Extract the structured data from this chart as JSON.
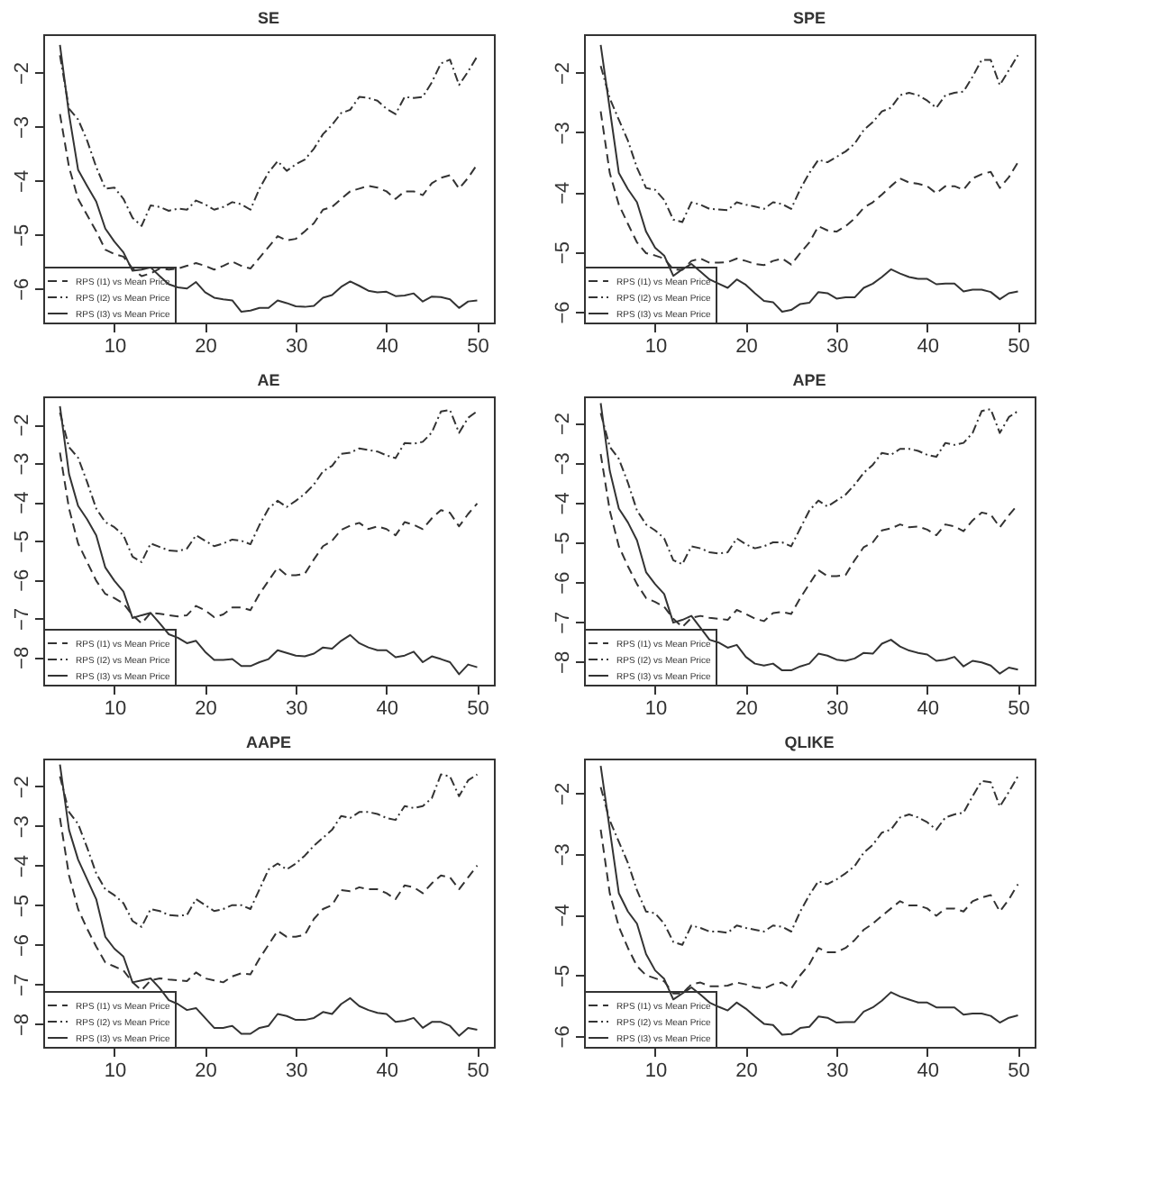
{
  "chart_data": [
    {
      "type": "line",
      "title": "SE",
      "x": [
        4,
        5,
        6,
        7,
        8,
        9,
        10,
        11,
        12,
        13,
        14,
        15,
        16,
        17,
        18,
        19,
        20,
        21,
        22,
        23,
        24,
        25,
        26,
        27,
        28,
        29,
        30,
        31,
        32,
        33,
        34,
        35,
        36,
        37,
        38,
        39,
        40,
        41,
        42,
        43,
        44,
        45,
        46,
        47,
        48,
        49,
        50
      ],
      "xlim": [
        2.16,
        51.84
      ],
      "ylim": [
        -6.63,
        -1.29
      ],
      "xticks": [
        10,
        20,
        30,
        40,
        50
      ],
      "yticks": [
        -6,
        -5,
        -4,
        -3,
        -2
      ],
      "legend": "bottom left",
      "series": [
        {
          "name": "RPS (I1) vs Mean Price",
          "color": "#333333",
          "line_style": "dashed",
          "values": [
            -2.77,
            -3.75,
            -4.34,
            -4.64,
            -4.94,
            -5.28,
            -5.36,
            -5.41,
            -5.63,
            -5.77,
            -5.72,
            -5.63,
            -5.65,
            -5.63,
            -5.58,
            -5.53,
            -5.58,
            -5.65,
            -5.58,
            -5.5,
            -5.58,
            -5.63,
            -5.43,
            -5.23,
            -5.03,
            -5.11,
            -5.08,
            -4.94,
            -4.79,
            -4.54,
            -4.49,
            -4.34,
            -4.2,
            -4.15,
            -4.1,
            -4.13,
            -4.2,
            -4.34,
            -4.2,
            -4.2,
            -4.27,
            -4.05,
            -3.95,
            -3.9,
            -4.15,
            -3.95,
            -3.7
          ]
        },
        {
          "name": "RPS (I2) vs Mean Price",
          "color": "#333333",
          "line_style": "dashdot",
          "values": [
            -1.68,
            -2.67,
            -2.87,
            -3.26,
            -3.75,
            -4.15,
            -4.13,
            -4.34,
            -4.69,
            -4.84,
            -4.46,
            -4.49,
            -4.56,
            -4.52,
            -4.54,
            -4.37,
            -4.44,
            -4.54,
            -4.49,
            -4.4,
            -4.44,
            -4.54,
            -4.15,
            -3.85,
            -3.64,
            -3.82,
            -3.7,
            -3.61,
            -3.41,
            -3.14,
            -2.97,
            -2.75,
            -2.69,
            -2.45,
            -2.47,
            -2.52,
            -2.67,
            -2.77,
            -2.45,
            -2.47,
            -2.45,
            -2.18,
            -1.83,
            -1.76,
            -2.23,
            -1.98,
            -1.7
          ]
        },
        {
          "name": "RPS (I3) vs Mean Price",
          "color": "#333333",
          "line_style": "solid",
          "values": [
            -1.49,
            -2.77,
            -3.8,
            -4.1,
            -4.39,
            -4.89,
            -5.13,
            -5.33,
            -5.67,
            -5.65,
            -5.61,
            -5.77,
            -5.92,
            -5.98,
            -6.0,
            -5.88,
            -6.07,
            -6.17,
            -6.2,
            -6.22,
            -6.43,
            -6.41,
            -6.36,
            -6.36,
            -6.22,
            -6.27,
            -6.33,
            -6.34,
            -6.32,
            -6.17,
            -6.12,
            -5.97,
            -5.87,
            -5.95,
            -6.04,
            -6.07,
            -6.06,
            -6.14,
            -6.13,
            -6.09,
            -6.24,
            -6.15,
            -6.16,
            -6.2,
            -6.36,
            -6.24,
            -6.22
          ]
        }
      ]
    },
    {
      "type": "line",
      "title": "SPE",
      "x": [
        4,
        5,
        6,
        7,
        8,
        9,
        10,
        11,
        12,
        13,
        14,
        15,
        16,
        17,
        18,
        19,
        20,
        21,
        22,
        23,
        24,
        25,
        26,
        27,
        28,
        29,
        30,
        31,
        32,
        33,
        34,
        35,
        36,
        37,
        38,
        39,
        40,
        41,
        42,
        43,
        44,
        45,
        46,
        47,
        48,
        49,
        50
      ],
      "xlim": [
        2.16,
        51.84
      ],
      "ylim": [
        -6.18,
        -1.36
      ],
      "xticks": [
        10,
        20,
        30,
        40,
        50
      ],
      "yticks": [
        -6,
        -5,
        -4,
        -3,
        -2
      ],
      "legend": "bottom left",
      "series": [
        {
          "name": "RPS (I1) vs Mean Price",
          "color": "#333333",
          "line_style": "dashed",
          "values": [
            -2.65,
            -3.68,
            -4.21,
            -4.53,
            -4.84,
            -5.02,
            -5.06,
            -5.11,
            -5.29,
            -5.3,
            -5.15,
            -5.11,
            -5.18,
            -5.18,
            -5.17,
            -5.11,
            -5.15,
            -5.2,
            -5.22,
            -5.15,
            -5.11,
            -5.21,
            -5.02,
            -4.84,
            -4.57,
            -4.64,
            -4.66,
            -4.57,
            -4.44,
            -4.26,
            -4.17,
            -4.04,
            -3.9,
            -3.77,
            -3.84,
            -3.86,
            -3.9,
            -4.02,
            -3.9,
            -3.9,
            -3.96,
            -3.77,
            -3.7,
            -3.66,
            -3.93,
            -3.75,
            -3.5
          ]
        },
        {
          "name": "RPS (I2) vs Mean Price",
          "color": "#333333",
          "line_style": "dashdot",
          "values": [
            -1.89,
            -2.43,
            -2.79,
            -3.14,
            -3.59,
            -3.93,
            -3.96,
            -4.13,
            -4.46,
            -4.5,
            -4.17,
            -4.21,
            -4.28,
            -4.29,
            -4.3,
            -4.17,
            -4.21,
            -4.24,
            -4.28,
            -4.17,
            -4.2,
            -4.28,
            -3.95,
            -3.68,
            -3.46,
            -3.5,
            -3.41,
            -3.32,
            -3.19,
            -2.96,
            -2.83,
            -2.65,
            -2.59,
            -2.38,
            -2.34,
            -2.38,
            -2.47,
            -2.59,
            -2.38,
            -2.34,
            -2.32,
            -2.07,
            -1.79,
            -1.79,
            -2.21,
            -1.96,
            -1.71
          ]
        },
        {
          "name": "RPS (I3) vs Mean Price",
          "color": "#333333",
          "line_style": "solid",
          "values": [
            -1.54,
            -2.61,
            -3.68,
            -3.95,
            -4.17,
            -4.66,
            -4.93,
            -5.06,
            -5.4,
            -5.29,
            -5.2,
            -5.33,
            -5.46,
            -5.53,
            -5.6,
            -5.46,
            -5.55,
            -5.69,
            -5.82,
            -5.84,
            -6.0,
            -5.97,
            -5.87,
            -5.85,
            -5.67,
            -5.69,
            -5.78,
            -5.76,
            -5.76,
            -5.6,
            -5.53,
            -5.42,
            -5.29,
            -5.36,
            -5.42,
            -5.45,
            -5.45,
            -5.54,
            -5.53,
            -5.53,
            -5.66,
            -5.63,
            -5.63,
            -5.67,
            -5.79,
            -5.69,
            -5.66
          ]
        }
      ]
    },
    {
      "type": "line",
      "title": "AE",
      "x": [
        4,
        5,
        6,
        7,
        8,
        9,
        10,
        11,
        12,
        13,
        14,
        15,
        16,
        17,
        18,
        19,
        20,
        21,
        22,
        23,
        24,
        25,
        26,
        27,
        28,
        29,
        30,
        31,
        32,
        33,
        34,
        35,
        36,
        37,
        38,
        39,
        40,
        41,
        42,
        43,
        44,
        45,
        46,
        47,
        48,
        49,
        50
      ],
      "xlim": [
        2.16,
        51.84
      ],
      "ylim": [
        -8.71,
        -1.28
      ],
      "xticks": [
        10,
        20,
        30,
        40,
        50
      ],
      "yticks": [
        -8,
        -7,
        -6,
        -5,
        -4,
        -3,
        -2
      ],
      "legend": "bottom left",
      "series": [
        {
          "name": "RPS (I1) vs Mean Price",
          "color": "#333333",
          "line_style": "dashed",
          "values": [
            -2.73,
            -4.17,
            -5.07,
            -5.55,
            -6.03,
            -6.37,
            -6.48,
            -6.62,
            -6.92,
            -7.13,
            -6.86,
            -6.88,
            -6.92,
            -6.95,
            -6.92,
            -6.68,
            -6.79,
            -6.97,
            -6.9,
            -6.72,
            -6.72,
            -6.79,
            -6.37,
            -6.03,
            -5.69,
            -5.89,
            -5.89,
            -5.85,
            -5.48,
            -5.14,
            -5.0,
            -4.72,
            -4.61,
            -4.54,
            -4.7,
            -4.63,
            -4.7,
            -4.86,
            -4.52,
            -4.59,
            -4.7,
            -4.42,
            -4.21,
            -4.28,
            -4.63,
            -4.31,
            -4.04
          ]
        },
        {
          "name": "RPS (I2) vs Mean Price",
          "color": "#333333",
          "line_style": "dashdot",
          "values": [
            -1.7,
            -2.59,
            -2.86,
            -3.49,
            -4.17,
            -4.52,
            -4.65,
            -4.86,
            -5.41,
            -5.55,
            -5.07,
            -5.16,
            -5.25,
            -5.27,
            -5.2,
            -4.86,
            -5.0,
            -5.14,
            -5.07,
            -4.97,
            -5.0,
            -5.09,
            -4.59,
            -4.17,
            -3.97,
            -4.13,
            -3.97,
            -3.79,
            -3.55,
            -3.21,
            -3.07,
            -2.76,
            -2.73,
            -2.62,
            -2.66,
            -2.7,
            -2.8,
            -2.87,
            -2.48,
            -2.5,
            -2.45,
            -2.21,
            -1.67,
            -1.63,
            -2.22,
            -1.83,
            -1.66
          ]
        },
        {
          "name": "RPS (I3) vs Mean Price",
          "color": "#333333",
          "line_style": "solid",
          "values": [
            -1.53,
            -3.28,
            -4.1,
            -4.45,
            -4.86,
            -5.69,
            -6.03,
            -6.31,
            -6.99,
            -6.92,
            -6.86,
            -7.13,
            -7.41,
            -7.5,
            -7.64,
            -7.58,
            -7.86,
            -8.07,
            -8.07,
            -8.05,
            -8.23,
            -8.23,
            -8.13,
            -8.05,
            -7.82,
            -7.89,
            -7.96,
            -7.98,
            -7.91,
            -7.75,
            -7.78,
            -7.58,
            -7.43,
            -7.64,
            -7.75,
            -7.82,
            -7.82,
            -8.0,
            -7.96,
            -7.86,
            -8.13,
            -7.98,
            -8.05,
            -8.13,
            -8.44,
            -8.19,
            -8.26
          ]
        }
      ]
    },
    {
      "type": "line",
      "title": "APE",
      "x": [
        4,
        5,
        6,
        7,
        8,
        9,
        10,
        11,
        12,
        13,
        14,
        15,
        16,
        17,
        18,
        19,
        20,
        21,
        22,
        23,
        24,
        25,
        26,
        27,
        28,
        29,
        30,
        31,
        32,
        33,
        34,
        35,
        36,
        37,
        38,
        39,
        40,
        41,
        42,
        43,
        44,
        45,
        46,
        47,
        48,
        49,
        50
      ],
      "xlim": [
        2.16,
        51.84
      ],
      "ylim": [
        -8.58,
        -1.33
      ],
      "xticks": [
        10,
        20,
        30,
        40,
        50
      ],
      "yticks": [
        -8,
        -7,
        -6,
        -5,
        -4,
        -3,
        -2
      ],
      "legend": "bottom left",
      "series": [
        {
          "name": "RPS (I1) vs Mean Price",
          "color": "#333333",
          "line_style": "dashed",
          "values": [
            -2.78,
            -4.2,
            -5.1,
            -5.6,
            -6.05,
            -6.4,
            -6.5,
            -6.62,
            -6.92,
            -7.13,
            -6.9,
            -6.85,
            -6.9,
            -6.92,
            -6.95,
            -6.7,
            -6.8,
            -6.92,
            -6.98,
            -6.78,
            -6.75,
            -6.8,
            -6.4,
            -6.05,
            -5.7,
            -5.85,
            -5.85,
            -5.82,
            -5.45,
            -5.12,
            -5.0,
            -4.7,
            -4.65,
            -4.55,
            -4.62,
            -4.6,
            -4.68,
            -4.82,
            -4.55,
            -4.6,
            -4.72,
            -4.45,
            -4.25,
            -4.3,
            -4.62,
            -4.32,
            -4.05
          ]
        },
        {
          "name": "RPS (I2) vs Mean Price",
          "color": "#333333",
          "line_style": "dashdot",
          "values": [
            -1.75,
            -2.6,
            -2.9,
            -3.5,
            -4.2,
            -4.55,
            -4.7,
            -4.9,
            -5.45,
            -5.55,
            -5.1,
            -5.15,
            -5.25,
            -5.28,
            -5.25,
            -4.9,
            -5.05,
            -5.15,
            -5.1,
            -5.0,
            -5.0,
            -5.1,
            -4.65,
            -4.2,
            -3.95,
            -4.1,
            -3.95,
            -3.8,
            -3.55,
            -3.25,
            -3.05,
            -2.75,
            -2.8,
            -2.65,
            -2.65,
            -2.7,
            -2.8,
            -2.85,
            -2.5,
            -2.55,
            -2.5,
            -2.25,
            -1.7,
            -1.65,
            -2.25,
            -1.85,
            -1.7
          ]
        },
        {
          "name": "RPS (I3) vs Mean Price",
          "color": "#333333",
          "line_style": "solid",
          "values": [
            -1.5,
            -3.2,
            -4.15,
            -4.5,
            -4.95,
            -5.75,
            -6.05,
            -6.3,
            -7.02,
            -6.95,
            -6.85,
            -7.15,
            -7.45,
            -7.52,
            -7.65,
            -7.58,
            -7.88,
            -8.05,
            -8.1,
            -8.05,
            -8.22,
            -8.22,
            -8.12,
            -8.05,
            -7.8,
            -7.85,
            -7.95,
            -7.98,
            -7.92,
            -7.78,
            -7.8,
            -7.55,
            -7.45,
            -7.62,
            -7.72,
            -7.78,
            -7.82,
            -7.98,
            -7.95,
            -7.88,
            -8.12,
            -7.98,
            -8.02,
            -8.1,
            -8.3,
            -8.15,
            -8.2
          ]
        }
      ]
    },
    {
      "type": "line",
      "title": "AAPE",
      "x": [
        4,
        5,
        6,
        7,
        8,
        9,
        10,
        11,
        12,
        13,
        14,
        15,
        16,
        17,
        18,
        19,
        20,
        21,
        22,
        23,
        24,
        25,
        26,
        27,
        28,
        29,
        30,
        31,
        32,
        33,
        34,
        35,
        36,
        37,
        38,
        39,
        40,
        41,
        42,
        43,
        44,
        45,
        46,
        47,
        48,
        49,
        50
      ],
      "xlim": [
        2.16,
        51.84
      ],
      "ylim": [
        -8.58,
        -1.3
      ],
      "xticks": [
        10,
        20,
        30,
        40,
        50
      ],
      "yticks": [
        -8,
        -7,
        -6,
        -5,
        -4,
        -3,
        -2
      ],
      "legend": "bottom left",
      "series": [
        {
          "name": "RPS (I1) vs Mean Price",
          "color": "#333333",
          "line_style": "dashed",
          "values": [
            -2.8,
            -4.25,
            -5.1,
            -5.6,
            -6.05,
            -6.45,
            -6.55,
            -6.65,
            -6.95,
            -7.15,
            -6.9,
            -6.85,
            -6.88,
            -6.9,
            -6.92,
            -6.7,
            -6.85,
            -6.9,
            -6.95,
            -6.8,
            -6.72,
            -6.75,
            -6.35,
            -6.0,
            -5.65,
            -5.8,
            -5.8,
            -5.75,
            -5.35,
            -5.1,
            -5.0,
            -4.62,
            -4.65,
            -4.55,
            -4.6,
            -4.6,
            -4.7,
            -4.85,
            -4.5,
            -4.55,
            -4.7,
            -4.45,
            -4.25,
            -4.3,
            -4.6,
            -4.3,
            -4.0
          ]
        },
        {
          "name": "RPS (I2) vs Mean Price",
          "color": "#333333",
          "line_style": "dashdot",
          "values": [
            -1.75,
            -2.65,
            -2.95,
            -3.55,
            -4.2,
            -4.6,
            -4.75,
            -4.95,
            -5.4,
            -5.55,
            -5.1,
            -5.15,
            -5.25,
            -5.27,
            -5.25,
            -4.85,
            -5.0,
            -5.15,
            -5.1,
            -5.0,
            -5.0,
            -5.1,
            -4.6,
            -4.1,
            -3.95,
            -4.1,
            -3.95,
            -3.75,
            -3.5,
            -3.3,
            -3.1,
            -2.75,
            -2.8,
            -2.65,
            -2.65,
            -2.7,
            -2.8,
            -2.85,
            -2.5,
            -2.55,
            -2.5,
            -2.3,
            -1.7,
            -1.75,
            -2.25,
            -1.85,
            -1.7
          ]
        },
        {
          "name": "RPS (I3) vs Mean Price",
          "color": "#333333",
          "line_style": "solid",
          "values": [
            -1.45,
            -3.1,
            -3.85,
            -4.35,
            -4.85,
            -5.8,
            -6.1,
            -6.3,
            -6.95,
            -6.9,
            -6.85,
            -7.1,
            -7.4,
            -7.5,
            -7.65,
            -7.6,
            -7.85,
            -8.1,
            -8.1,
            -8.05,
            -8.25,
            -8.25,
            -8.1,
            -8.05,
            -7.75,
            -7.8,
            -7.9,
            -7.9,
            -7.85,
            -7.7,
            -7.75,
            -7.5,
            -7.35,
            -7.55,
            -7.65,
            -7.72,
            -7.75,
            -7.95,
            -7.92,
            -7.85,
            -8.1,
            -7.95,
            -7.95,
            -8.05,
            -8.3,
            -8.1,
            -8.15
          ]
        }
      ]
    },
    {
      "type": "line",
      "title": "QLIKE",
      "x": [
        4,
        5,
        6,
        7,
        8,
        9,
        10,
        11,
        12,
        13,
        14,
        15,
        16,
        17,
        18,
        19,
        20,
        21,
        22,
        23,
        24,
        25,
        26,
        27,
        28,
        29,
        30,
        31,
        32,
        33,
        34,
        35,
        36,
        37,
        38,
        39,
        40,
        41,
        42,
        43,
        44,
        45,
        46,
        47,
        48,
        49,
        50
      ],
      "xlim": [
        2.16,
        51.84
      ],
      "ylim": [
        -6.18,
        -1.43
      ],
      "xticks": [
        10,
        20,
        30,
        40,
        50
      ],
      "yticks": [
        -6,
        -5,
        -4,
        -3,
        -2
      ],
      "legend": "bottom left",
      "series": [
        {
          "name": "RPS (I1) vs Mean Price",
          "color": "#333333",
          "line_style": "dashed",
          "values": [
            -2.6,
            -3.65,
            -4.2,
            -4.55,
            -4.85,
            -5.0,
            -5.05,
            -5.1,
            -5.3,
            -5.3,
            -5.15,
            -5.12,
            -5.18,
            -5.18,
            -5.17,
            -5.12,
            -5.15,
            -5.2,
            -5.22,
            -5.15,
            -5.12,
            -5.22,
            -5.0,
            -4.82,
            -4.55,
            -4.62,
            -4.62,
            -4.55,
            -4.42,
            -4.25,
            -4.15,
            -4.02,
            -3.9,
            -3.78,
            -3.85,
            -3.85,
            -3.9,
            -4.02,
            -3.9,
            -3.9,
            -3.95,
            -3.78,
            -3.72,
            -3.68,
            -3.95,
            -3.75,
            -3.5
          ]
        },
        {
          "name": "RPS (I2) vs Mean Price",
          "color": "#333333",
          "line_style": "dashdot",
          "values": [
            -1.9,
            -2.45,
            -2.8,
            -3.15,
            -3.6,
            -3.95,
            -3.98,
            -4.15,
            -4.45,
            -4.5,
            -4.18,
            -4.22,
            -4.28,
            -4.28,
            -4.3,
            -4.18,
            -4.22,
            -4.25,
            -4.28,
            -4.18,
            -4.2,
            -4.28,
            -3.95,
            -3.68,
            -3.45,
            -3.5,
            -3.42,
            -3.32,
            -3.2,
            -2.98,
            -2.85,
            -2.65,
            -2.6,
            -2.4,
            -2.35,
            -2.4,
            -2.48,
            -2.6,
            -2.4,
            -2.35,
            -2.32,
            -2.05,
            -1.8,
            -1.82,
            -2.22,
            -1.98,
            -1.72
          ]
        },
        {
          "name": "RPS (I3) vs Mean Price",
          "color": "#333333",
          "line_style": "solid",
          "values": [
            -1.55,
            -2.6,
            -3.65,
            -3.95,
            -4.15,
            -4.65,
            -4.92,
            -5.06,
            -5.4,
            -5.3,
            -5.2,
            -5.32,
            -5.45,
            -5.52,
            -5.58,
            -5.45,
            -5.55,
            -5.68,
            -5.8,
            -5.82,
            -5.98,
            -5.97,
            -5.87,
            -5.85,
            -5.68,
            -5.7,
            -5.78,
            -5.77,
            -5.77,
            -5.6,
            -5.53,
            -5.42,
            -5.28,
            -5.35,
            -5.4,
            -5.45,
            -5.45,
            -5.53,
            -5.53,
            -5.53,
            -5.65,
            -5.63,
            -5.63,
            -5.67,
            -5.78,
            -5.7,
            -5.66
          ]
        }
      ]
    }
  ]
}
